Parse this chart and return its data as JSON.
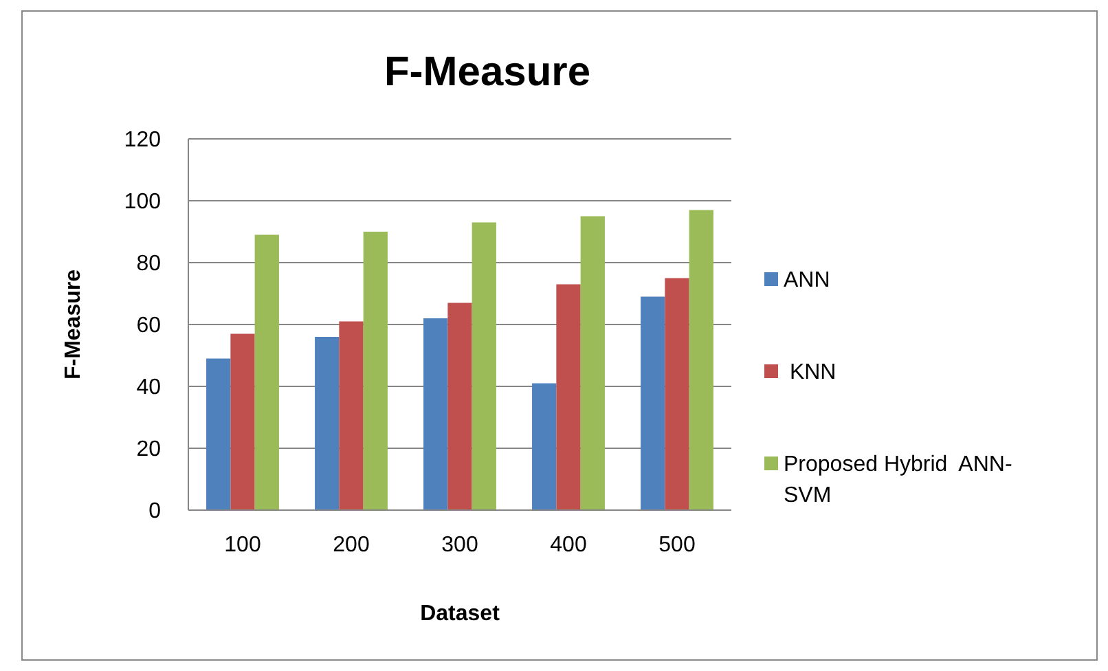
{
  "chart_data": {
    "type": "bar",
    "title": "F-Measure",
    "xlabel": "Dataset",
    "ylabel": "F-Measure",
    "categories": [
      "100",
      "200",
      "300",
      "400",
      "500"
    ],
    "series": [
      {
        "name": "ANN",
        "color": "#4f81bd",
        "values": [
          49,
          56,
          62,
          41,
          69
        ]
      },
      {
        "name": " KNN",
        "color": "#c0504d",
        "values": [
          57,
          61,
          67,
          73,
          75
        ]
      },
      {
        "name": "Proposed Hybrid  ANN-SVM",
        "color": "#9bbb59",
        "values": [
          89,
          90,
          93,
          95,
          97
        ]
      }
    ],
    "ylim": [
      0,
      120
    ],
    "yticks": [
      0,
      20,
      40,
      60,
      80,
      100,
      120
    ],
    "grid": "y",
    "legend": "right"
  }
}
